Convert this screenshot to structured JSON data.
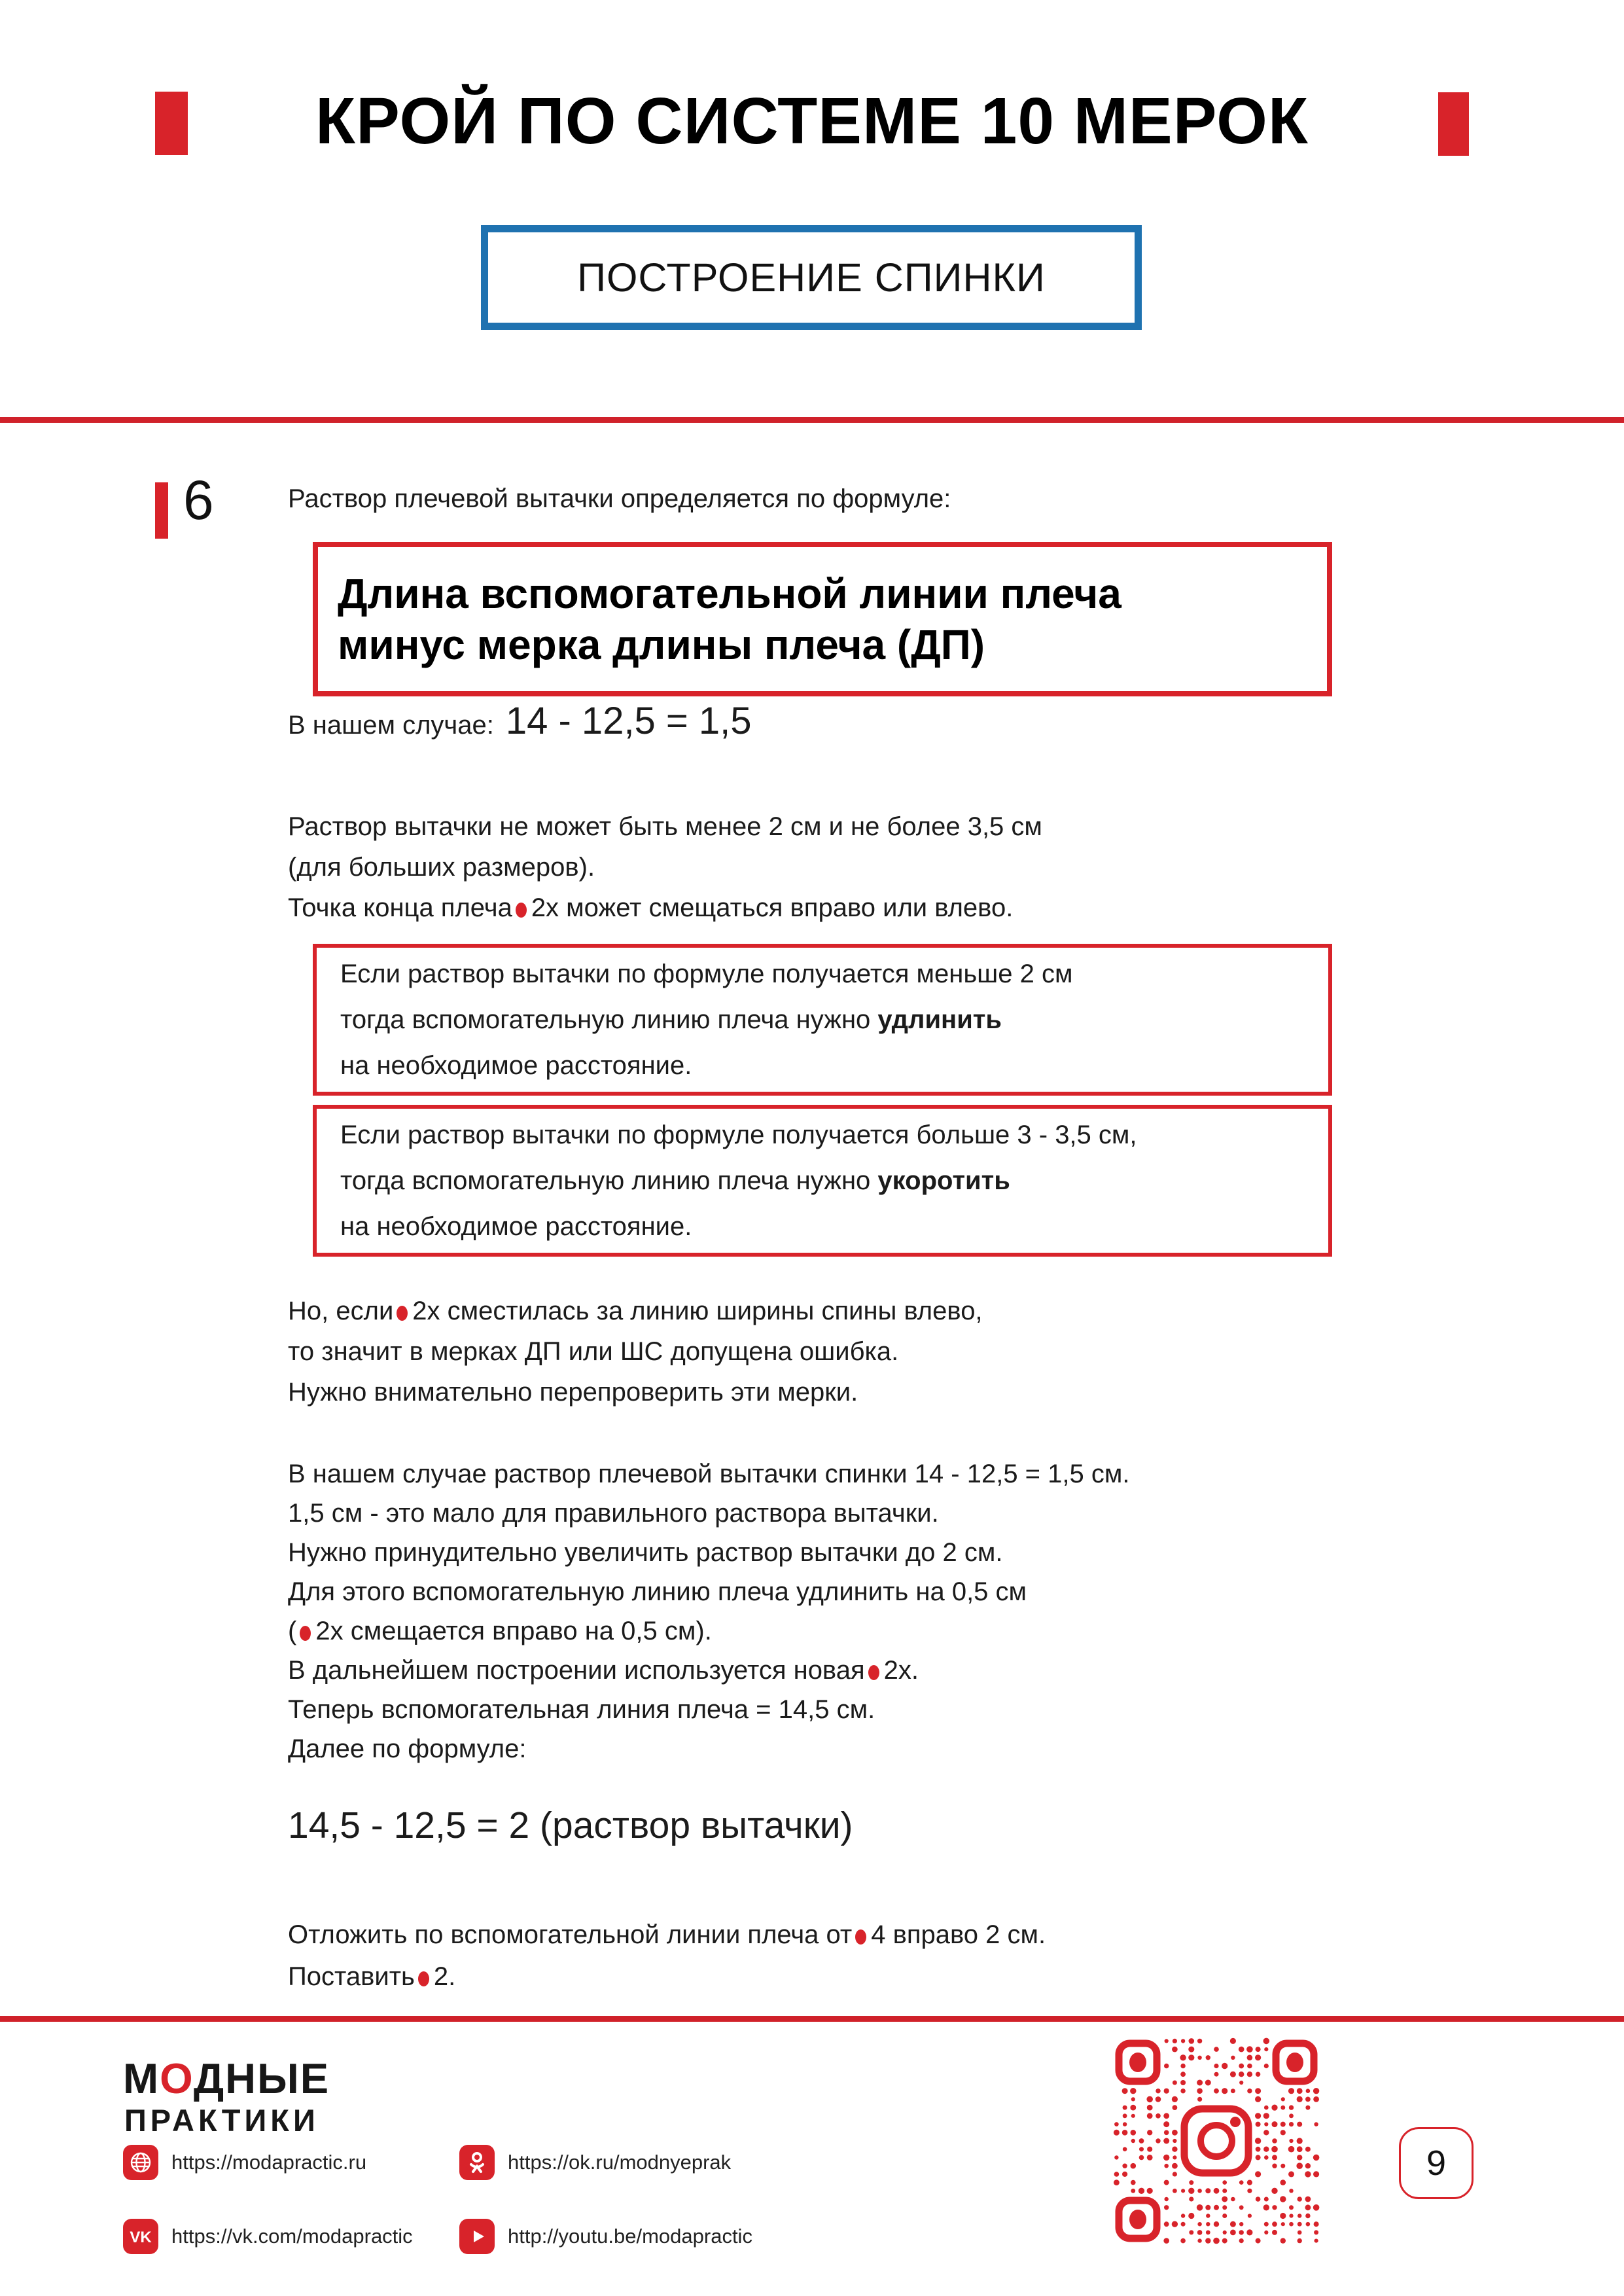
{
  "colors": {
    "red": "#d8232a",
    "blue": "#1f72b0",
    "text": "#1b1b1b"
  },
  "header": {
    "title": "КРОЙ ПО СИСТЕМЕ 10 МЕРОК",
    "subtitle": "ПОСТРОЕНИЕ СПИНКИ"
  },
  "step": {
    "number": "6",
    "intro": "Раствор плечевой вытачки определяется по формуле:",
    "formula_line1": "Длина вспомогательной линии плеча",
    "formula_line2": "минус мерка длины плеча (ДП)",
    "case_label": "В нашем случае:",
    "case_value": "14 - 12,5 = 1,5",
    "para_limits": [
      [
        {
          "t": "Раствор вытачки не может быть менее 2 см и не более 3,5 см"
        }
      ],
      [
        {
          "t": "(для больших размеров)."
        }
      ],
      [
        {
          "t": "Точка конца плеча"
        },
        {
          "dot": true
        },
        {
          "t": "2х может смещаться вправо или влево."
        }
      ]
    ],
    "warning_longer": [
      [
        {
          "t": "Если раствор вытачки по формуле получается меньше 2 см"
        }
      ],
      [
        {
          "t": "тогда вспомогательную линию плеча нужно "
        },
        {
          "t": "удлинить",
          "b": true
        }
      ],
      [
        {
          "t": "на необходимое расстояние."
        }
      ]
    ],
    "warning_shorter": [
      [
        {
          "t": "Если раствор вытачки по формуле получается больше 3 - 3,5 см,"
        }
      ],
      [
        {
          "t": "тогда вспомогательную линию плеча нужно "
        },
        {
          "t": "укоротить",
          "b": true
        }
      ],
      [
        {
          "t": "на необходимое расстояние."
        }
      ]
    ],
    "para_error": [
      [
        {
          "t": "Но, если"
        },
        {
          "dot": true
        },
        {
          "t": "2х сместилась за линию ширины спины влево,"
        }
      ],
      [
        {
          "t": "то значит в мерках ДП или ШС допущена ошибка."
        }
      ],
      [
        {
          "t": "Нужно внимательно перепроверить эти мерки."
        }
      ]
    ],
    "para_case": [
      [
        {
          "t": "В нашем случае раствор плечевой вытачки спинки 14 - 12,5 = 1,5 см."
        }
      ],
      [
        {
          "t": "1,5 см - это мало для правильного раствора вытачки."
        }
      ],
      [
        {
          "t": "Нужно принудительно увеличить раствор вытачки до 2 см."
        }
      ],
      [
        {
          "t": "Для этого вспомогательную линию плеча удлинить на 0,5 см"
        }
      ],
      [
        {
          "t": "("
        },
        {
          "dot": true
        },
        {
          "t": "2х смещается вправо на 0,5 см)."
        }
      ],
      [
        {
          "t": "В дальнейшем построении используется новая"
        },
        {
          "dot": true
        },
        {
          "t": "2х."
        }
      ],
      [
        {
          "t": "Теперь вспомогательная линия плеча = 14,5 см."
        }
      ],
      [
        {
          "t": "Далее по формуле:"
        }
      ]
    ],
    "formula_result": "14,5 - 12,5 = 2 (раствор вытачки)",
    "para_final": [
      [
        {
          "t": "Отложить по вспомогательной линии плеча от"
        },
        {
          "dot": true
        },
        {
          "t": "4 вправо 2 см."
        }
      ],
      [
        {
          "t": "Поставить"
        },
        {
          "dot": true
        },
        {
          "t": "2."
        }
      ]
    ]
  },
  "footer": {
    "logo_m": "М",
    "logo_o": "О",
    "logo_rest": "ДНЫЕ",
    "logo_line2": "ПРАКТИКИ",
    "vk_glyph": "VK",
    "links": [
      {
        "icon": "globe-icon",
        "url": "https://modapractic.ru"
      },
      {
        "icon": "ok-icon",
        "url": "https://ok.ru/modnyeprak"
      },
      {
        "icon": "vk-icon",
        "url": "https://vk.com/modapractic"
      },
      {
        "icon": "youtube-icon",
        "url": "http://youtu.be/modapractic"
      }
    ],
    "page_number": "9"
  }
}
